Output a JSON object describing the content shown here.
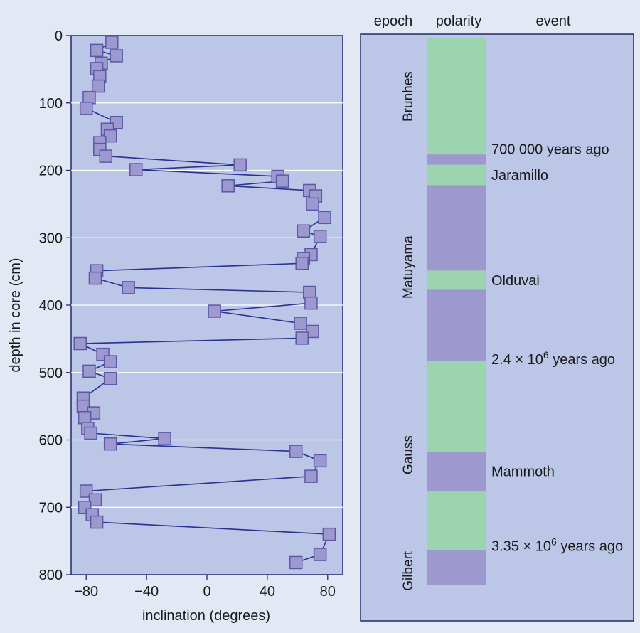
{
  "colors": {
    "page_bg": "#e3e8f5",
    "plot_bg": "#bcc6e6",
    "frame": "#1f2a6e",
    "line": "#2a3290",
    "marker_fill": "#9d99cf",
    "marker_stroke": "#5a58a8",
    "gridline": "#ffffff",
    "normal_polarity": "#9bd4ae",
    "reversed_polarity": "#9d99cf"
  },
  "chart_data": [
    {
      "type": "line",
      "orientation": "depth-down",
      "title": "",
      "xlabel": "inclination (degrees)",
      "ylabel": "depth in core (cm)",
      "xlim": [
        -90,
        90
      ],
      "ylim": [
        0,
        800
      ],
      "y_inverted": true,
      "grid": "horizontal",
      "x_ticks": [
        -80,
        -40,
        0,
        40,
        80
      ],
      "x_tick_labels": [
        "−80",
        "−40",
        "0",
        "40",
        "80"
      ],
      "y_ticks": [
        0,
        100,
        200,
        300,
        400,
        500,
        600,
        700,
        800
      ],
      "y_tick_labels": [
        "0",
        "100",
        "200",
        "300",
        "400",
        "500",
        "600",
        "700",
        "800"
      ],
      "marker": "square",
      "series": [
        {
          "name": "inclination",
          "points": [
            {
              "inclination": -63,
              "depth": 10
            },
            {
              "inclination": -73,
              "depth": 22
            },
            {
              "inclination": -60,
              "depth": 30
            },
            {
              "inclination": -70,
              "depth": 41
            },
            {
              "inclination": -73,
              "depth": 49
            },
            {
              "inclination": -71,
              "depth": 61
            },
            {
              "inclination": -72,
              "depth": 75
            },
            {
              "inclination": -78,
              "depth": 92
            },
            {
              "inclination": -80,
              "depth": 108
            },
            {
              "inclination": -60,
              "depth": 129
            },
            {
              "inclination": -66,
              "depth": 139
            },
            {
              "inclination": -64,
              "depth": 149
            },
            {
              "inclination": -71,
              "depth": 159
            },
            {
              "inclination": -71,
              "depth": 169
            },
            {
              "inclination": -67,
              "depth": 179
            },
            {
              "inclination": 22,
              "depth": 192
            },
            {
              "inclination": -47,
              "depth": 199
            },
            {
              "inclination": 47,
              "depth": 209
            },
            {
              "inclination": 50,
              "depth": 216
            },
            {
              "inclination": 14,
              "depth": 223
            },
            {
              "inclination": 68,
              "depth": 230
            },
            {
              "inclination": 72,
              "depth": 238
            },
            {
              "inclination": 70,
              "depth": 250
            },
            {
              "inclination": 78,
              "depth": 270
            },
            {
              "inclination": 64,
              "depth": 290
            },
            {
              "inclination": 75,
              "depth": 298
            },
            {
              "inclination": 69,
              "depth": 325
            },
            {
              "inclination": 64,
              "depth": 331
            },
            {
              "inclination": 63,
              "depth": 338
            },
            {
              "inclination": -73,
              "depth": 349
            },
            {
              "inclination": -74,
              "depth": 360
            },
            {
              "inclination": -52,
              "depth": 374
            },
            {
              "inclination": 68,
              "depth": 381
            },
            {
              "inclination": 69,
              "depth": 397
            },
            {
              "inclination": 5,
              "depth": 409
            },
            {
              "inclination": 62,
              "depth": 427
            },
            {
              "inclination": 70,
              "depth": 439
            },
            {
              "inclination": 63,
              "depth": 449
            },
            {
              "inclination": -84,
              "depth": 457
            },
            {
              "inclination": -69,
              "depth": 473
            },
            {
              "inclination": -64,
              "depth": 484
            },
            {
              "inclination": -78,
              "depth": 498
            },
            {
              "inclination": -64,
              "depth": 509
            },
            {
              "inclination": -82,
              "depth": 538
            },
            {
              "inclination": -82,
              "depth": 550
            },
            {
              "inclination": -75,
              "depth": 560
            },
            {
              "inclination": -81,
              "depth": 567
            },
            {
              "inclination": -79,
              "depth": 583
            },
            {
              "inclination": -77,
              "depth": 590
            },
            {
              "inclination": -28,
              "depth": 598
            },
            {
              "inclination": -64,
              "depth": 606
            },
            {
              "inclination": 59,
              "depth": 617
            },
            {
              "inclination": 75,
              "depth": 631
            },
            {
              "inclination": 69,
              "depth": 654
            },
            {
              "inclination": -80,
              "depth": 676
            },
            {
              "inclination": -74,
              "depth": 689
            },
            {
              "inclination": -81,
              "depth": 700
            },
            {
              "inclination": -76,
              "depth": 711
            },
            {
              "inclination": -73,
              "depth": 722
            },
            {
              "inclination": 81,
              "depth": 740
            },
            {
              "inclination": 75,
              "depth": 770
            },
            {
              "inclination": 59,
              "depth": 782
            }
          ]
        }
      ]
    },
    {
      "type": "polarity-column",
      "headers": {
        "epoch": "epoch",
        "polarity": "polarity",
        "event": "event"
      },
      "depth_range": [
        0,
        800
      ],
      "polarity_bands": [
        {
          "top": 0,
          "bottom": 170,
          "polarity": "normal"
        },
        {
          "top": 170,
          "bottom": 185,
          "polarity": "reversed"
        },
        {
          "top": 185,
          "bottom": 215,
          "polarity": "normal"
        },
        {
          "top": 215,
          "bottom": 340,
          "polarity": "reversed"
        },
        {
          "top": 340,
          "bottom": 368,
          "polarity": "normal"
        },
        {
          "top": 368,
          "bottom": 472,
          "polarity": "reversed"
        },
        {
          "top": 472,
          "bottom": 606,
          "polarity": "normal"
        },
        {
          "top": 606,
          "bottom": 663,
          "polarity": "reversed"
        },
        {
          "top": 663,
          "bottom": 750,
          "polarity": "normal"
        },
        {
          "top": 750,
          "bottom": 800,
          "polarity": "reversed"
        }
      ],
      "epochs": [
        {
          "name": "Brunhes",
          "center_depth": 85
        },
        {
          "name": "Matuyama",
          "center_depth": 335
        },
        {
          "name": "Gauss",
          "center_depth": 610
        },
        {
          "name": "Gilbert",
          "center_depth": 780
        }
      ],
      "events": [
        {
          "label": "700 000 years ago",
          "depth": 162
        },
        {
          "label": "Jaramillo",
          "depth": 200
        },
        {
          "label": "Olduvai",
          "depth": 354
        },
        {
          "label": "2.4 × 10",
          "sup": "6",
          "suffix": " years ago",
          "depth": 470
        },
        {
          "label": "Mammoth",
          "depth": 634
        },
        {
          "label": "3.35 × 10",
          "sup": "6",
          "suffix": " years ago",
          "depth": 743
        }
      ]
    }
  ]
}
